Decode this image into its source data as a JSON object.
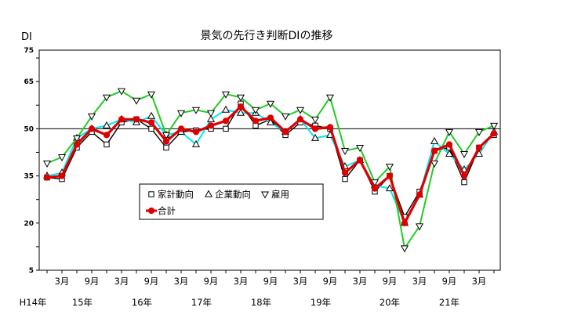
{
  "chart_data": {
    "type": "line",
    "title": "景気の先行き判断DIの推移",
    "ylabel": "DI",
    "ylim": [
      5,
      75
    ],
    "yticks": [
      5,
      20,
      35,
      50,
      65,
      75
    ],
    "reference_line": 50,
    "month_labels": [
      "3月",
      "9月",
      "3月",
      "9月",
      "3月",
      "9月",
      "3月",
      "9月",
      "3月",
      "9月",
      "3月",
      "9月",
      "3月",
      "9月",
      "3月"
    ],
    "year_labels": [
      "H14年",
      "15年",
      "16年",
      "17年",
      "18年",
      "19年",
      "20年",
      "21年"
    ],
    "series": [
      {
        "name": "家計動向",
        "color": "#000000",
        "marker": "square",
        "values": [
          34.5,
          34,
          44,
          49,
          45,
          52,
          53,
          50,
          44,
          49,
          49.5,
          50,
          50,
          58,
          51,
          53,
          48,
          52,
          51,
          50,
          34,
          40,
          30,
          35,
          22,
          30,
          43,
          44,
          33,
          44,
          48
        ]
      },
      {
        "name": "企業動向",
        "color": "#00e8f0",
        "marker": "triangle-up",
        "values": [
          35,
          36,
          47,
          50,
          51,
          53,
          52,
          54,
          48,
          49,
          45,
          53,
          56,
          55,
          55,
          52,
          49,
          53,
          47,
          48,
          38,
          40,
          32,
          31,
          20,
          29,
          46,
          42,
          37,
          42,
          49
        ]
      },
      {
        "name": "雇用",
        "color": "#22cc22",
        "marker": "triangle-down",
        "values": [
          39,
          41,
          47,
          54,
          60,
          62,
          59,
          61,
          48,
          55,
          56,
          55,
          61,
          60,
          56,
          58,
          54,
          56,
          53,
          60,
          43,
          44,
          33,
          38,
          12,
          19,
          39,
          49,
          42,
          49,
          51
        ]
      },
      {
        "name": "合計",
        "color": "#dd0000",
        "marker": "circle",
        "values": [
          34.5,
          35,
          45,
          50,
          48,
          53,
          53,
          52,
          46,
          50,
          49,
          51,
          52.5,
          57,
          52.5,
          53.5,
          49,
          53,
          50,
          50.5,
          36,
          40,
          31,
          35,
          20,
          29,
          43,
          45,
          35,
          44,
          48.5
        ]
      }
    ]
  }
}
